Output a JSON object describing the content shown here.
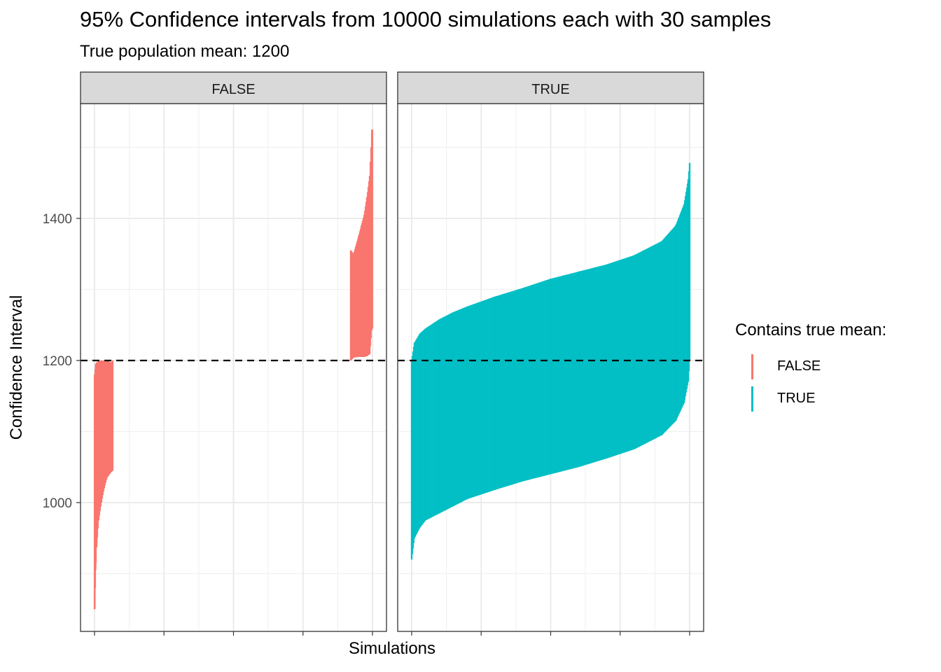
{
  "title": "95% Confidence intervals from 10000 simulations each with 30 samples",
  "subtitle": "True population mean: 1200",
  "axes": {
    "y_title": "Confidence Interval",
    "x_title": "Simulations"
  },
  "legend": {
    "title": "Contains true mean:",
    "items": [
      {
        "label": "FALSE",
        "color": "#F8766D"
      },
      {
        "label": "TRUE",
        "color": "#00BFC4"
      }
    ]
  },
  "chart_data": {
    "type": "line",
    "facets": [
      "FALSE",
      "TRUE"
    ],
    "xlabel": "Simulations",
    "ylabel": "Confidence Interval",
    "x_range": [
      1,
      10000
    ],
    "ylim": [
      830,
      1540
    ],
    "y_ticks": [
      1000,
      1200,
      1400
    ],
    "reference_line": {
      "y": 1200,
      "style": "dashed"
    },
    "grid": true,
    "legend_position": "right",
    "series": [
      {
        "name": "FALSE",
        "color": "#F8766D",
        "points": [
          {
            "x": 10,
            "lower": 850,
            "upper": 1180
          },
          {
            "x": 40,
            "lower": 905,
            "upper": 1195
          },
          {
            "x": 80,
            "lower": 940,
            "upper": 1197
          },
          {
            "x": 150,
            "lower": 975,
            "upper": 1199
          },
          {
            "x": 250,
            "lower": 1000,
            "upper": 1200
          },
          {
            "x": 350,
            "lower": 1020,
            "upper": 1200
          },
          {
            "x": 450,
            "lower": 1035,
            "upper": 1200
          },
          {
            "x": 600,
            "lower": 1043,
            "upper": 1197
          },
          {
            "x": 650,
            "lower": 1045,
            "upper": 1200
          },
          {
            "x": 9220,
            "lower": 1200,
            "upper": 1355
          },
          {
            "x": 9320,
            "lower": 1204,
            "upper": 1350
          },
          {
            "x": 9500,
            "lower": 1205,
            "upper": 1375
          },
          {
            "x": 9600,
            "lower": 1205,
            "upper": 1390
          },
          {
            "x": 9700,
            "lower": 1205,
            "upper": 1405
          },
          {
            "x": 9800,
            "lower": 1206,
            "upper": 1430
          },
          {
            "x": 9900,
            "lower": 1209,
            "upper": 1460
          },
          {
            "x": 9980,
            "lower": 1245,
            "upper": 1525
          }
        ]
      },
      {
        "name": "TRUE",
        "color": "#00BFC4",
        "points": [
          {
            "x": 1,
            "lower": 920,
            "upper": 1200
          },
          {
            "x": 100,
            "lower": 950,
            "upper": 1225
          },
          {
            "x": 300,
            "lower": 965,
            "upper": 1238
          },
          {
            "x": 500,
            "lower": 975,
            "upper": 1245
          },
          {
            "x": 1000,
            "lower": 985,
            "upper": 1258
          },
          {
            "x": 1500,
            "lower": 995,
            "upper": 1268
          },
          {
            "x": 2000,
            "lower": 1005,
            "upper": 1276
          },
          {
            "x": 3000,
            "lower": 1018,
            "upper": 1290
          },
          {
            "x": 4000,
            "lower": 1030,
            "upper": 1302
          },
          {
            "x": 5000,
            "lower": 1040,
            "upper": 1315
          },
          {
            "x": 6000,
            "lower": 1050,
            "upper": 1325
          },
          {
            "x": 7000,
            "lower": 1062,
            "upper": 1335
          },
          {
            "x": 8000,
            "lower": 1075,
            "upper": 1348
          },
          {
            "x": 9000,
            "lower": 1095,
            "upper": 1368
          },
          {
            "x": 9500,
            "lower": 1115,
            "upper": 1390
          },
          {
            "x": 9800,
            "lower": 1140,
            "upper": 1420
          },
          {
            "x": 9950,
            "lower": 1170,
            "upper": 1455
          },
          {
            "x": 10000,
            "lower": 1200,
            "upper": 1478
          }
        ]
      }
    ]
  }
}
